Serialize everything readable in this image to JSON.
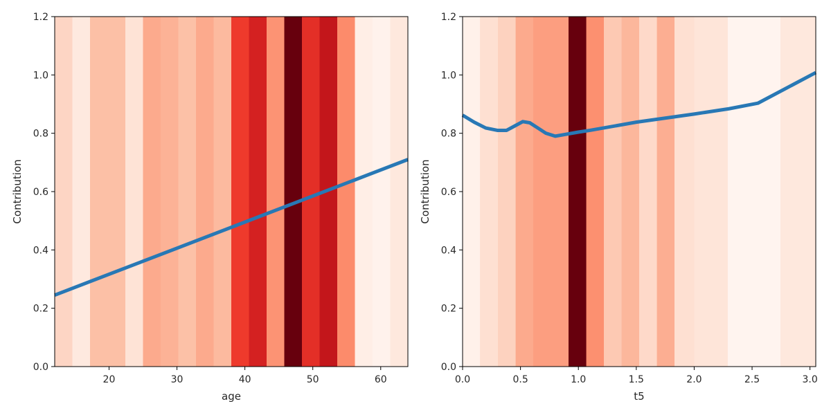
{
  "chart_data": [
    {
      "type": "line",
      "xlabel": "age",
      "ylabel": "Contribution",
      "xlim": [
        12,
        64
      ],
      "ylim": [
        0,
        1.2
      ],
      "xticks": [
        20,
        30,
        40,
        50,
        60
      ],
      "yticks": [
        0.0,
        0.2,
        0.4,
        0.6,
        0.8,
        1.0,
        1.2
      ],
      "tick_decimals_x": 0,
      "tick_decimals_y": 1,
      "grid": false,
      "line_color": "#2878b5",
      "background_bands": {
        "colormap": "Reds",
        "edges": [
          12,
          14.6,
          17.2,
          19.8,
          22.4,
          25.0,
          27.6,
          30.2,
          32.8,
          35.4,
          38.0,
          40.6,
          43.2,
          45.8,
          48.4,
          51.0,
          53.6,
          56.2,
          58.8,
          61.4,
          64
        ],
        "colors": [
          "#fdd5c4",
          "#fee9df",
          "#fcc0a6",
          "#fcc0a6",
          "#fee3d6",
          "#fcaa8d",
          "#fcb296",
          "#fcc1a7",
          "#fcaa8d",
          "#fcba9f",
          "#ee3a2c",
          "#d42121",
          "#fc9374",
          "#67000d",
          "#e32f27",
          "#c3161b",
          "#fc8b6b",
          "#ffeee6",
          "#fff2ec",
          "#fee8dd"
        ]
      },
      "series": [
        {
          "x": [
            12,
            64
          ],
          "y": [
            0.245,
            0.71
          ]
        }
      ]
    },
    {
      "type": "line",
      "xlabel": "t5",
      "ylabel": "Contribution",
      "xlim": [
        0.0,
        3.05
      ],
      "ylim": [
        0,
        1.2
      ],
      "xticks": [
        0.0,
        0.5,
        1.0,
        1.5,
        2.0,
        2.5,
        3.0
      ],
      "yticks": [
        0.0,
        0.2,
        0.4,
        0.6,
        0.8,
        1.0,
        1.2
      ],
      "tick_decimals_x": 1,
      "tick_decimals_y": 1,
      "grid": false,
      "line_color": "#2878b5",
      "background_bands": {
        "colormap": "Reds",
        "edges": [
          0.0,
          0.15,
          0.305,
          0.458,
          0.61,
          0.763,
          0.915,
          1.068,
          1.22,
          1.373,
          1.525,
          1.678,
          1.83,
          2.0,
          2.29,
          2.745,
          3.05
        ],
        "colors": [
          "#fff1ea",
          "#fee0d2",
          "#fdd2bf",
          "#fcaa8d",
          "#fc9e80",
          "#fc9e80",
          "#67000d",
          "#fc9070",
          "#fdc9b3",
          "#fcb79c",
          "#fed9c9",
          "#fcae92",
          "#fee0d2",
          "#fee5d9",
          "#fff4ef",
          "#fee8dd"
        ]
      },
      "series": [
        {
          "x": [
            0.0,
            0.1,
            0.2,
            0.3,
            0.38,
            0.45,
            0.52,
            0.58,
            0.65,
            0.72,
            0.8,
            0.9,
            1.0,
            1.1,
            1.5,
            2.0,
            2.3,
            2.55,
            3.05
          ],
          "y": [
            0.862,
            0.838,
            0.818,
            0.81,
            0.81,
            0.825,
            0.84,
            0.836,
            0.818,
            0.8,
            0.79,
            0.797,
            0.804,
            0.81,
            0.838,
            0.866,
            0.884,
            0.903,
            1.008
          ]
        }
      ]
    }
  ]
}
